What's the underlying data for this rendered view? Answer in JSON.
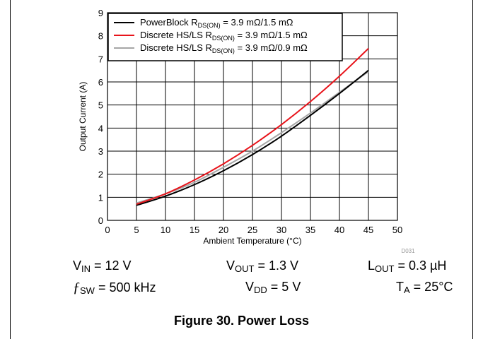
{
  "chart_data": {
    "type": "line",
    "xlabel": "Ambient Temperature (°C)",
    "ylabel": "Output Current (A)",
    "xlim": [
      0,
      50
    ],
    "ylim": [
      0,
      9
    ],
    "xticks": [
      "0",
      "5",
      "10",
      "15",
      "20",
      "25",
      "30",
      "35",
      "40",
      "45",
      "50"
    ],
    "yticks": [
      "0",
      "1",
      "2",
      "3",
      "4",
      "5",
      "6",
      "7",
      "8",
      "9"
    ],
    "grid": true,
    "legend_position": "top-left",
    "x": [
      5,
      10,
      15,
      20,
      25,
      30,
      35,
      40,
      45
    ],
    "series": [
      {
        "name": "PowerBlock RDS(ON) = 3.9 mΩ/1.5 mΩ",
        "name_main": "PowerBlock R",
        "name_sub": "DS(ON)",
        "name_rest": " = 3.9 mΩ/1.5 mΩ",
        "color": "#000000",
        "values": [
          0.65,
          1.05,
          1.55,
          2.15,
          2.85,
          3.65,
          4.55,
          5.5,
          6.5
        ]
      },
      {
        "name": "Discrete HS/LS RDS(ON) = 3.9 mΩ/1.5 mΩ",
        "name_main": "Discrete HS/LS R",
        "name_sub": "DS(ON)",
        "name_rest": " = 3.9 mΩ/1.5 mΩ",
        "color": "#e8141b",
        "values": [
          0.7,
          1.15,
          1.75,
          2.45,
          3.25,
          4.15,
          5.15,
          6.25,
          7.45
        ]
      },
      {
        "name": "Discrete HS/LS RDS(ON) = 3.9 mΩ/0.9 mΩ",
        "name_main": "Discrete HS/LS R",
        "name_sub": "DS(ON)",
        "name_rest": " = 3.9 mΩ/0.9 mΩ",
        "color": "#a6a6a6",
        "values": [
          0.75,
          1.15,
          1.65,
          2.3,
          3.0,
          3.8,
          4.65,
          5.55,
          6.45
        ]
      }
    ],
    "watermark": "D031"
  },
  "conditions": {
    "vin": {
      "sym": "V",
      "sub": "IN",
      "rest": " = 12 V"
    },
    "vout": {
      "sym": "V",
      "sub": "OUT",
      "rest": " = 1.3 V"
    },
    "lout": {
      "sym": "L",
      "sub": "OUT",
      "rest": " = 0.3 µH"
    },
    "fsw": {
      "sym": "ƒ",
      "sub": "SW",
      "rest": " = 500 kHz"
    },
    "vdd": {
      "sym": "V",
      "sub": "DD",
      "rest": " = 5 V"
    },
    "ta": {
      "sym": "T",
      "sub": "A",
      "rest": " = 25°C"
    }
  },
  "caption": "Figure 30. Power Loss"
}
